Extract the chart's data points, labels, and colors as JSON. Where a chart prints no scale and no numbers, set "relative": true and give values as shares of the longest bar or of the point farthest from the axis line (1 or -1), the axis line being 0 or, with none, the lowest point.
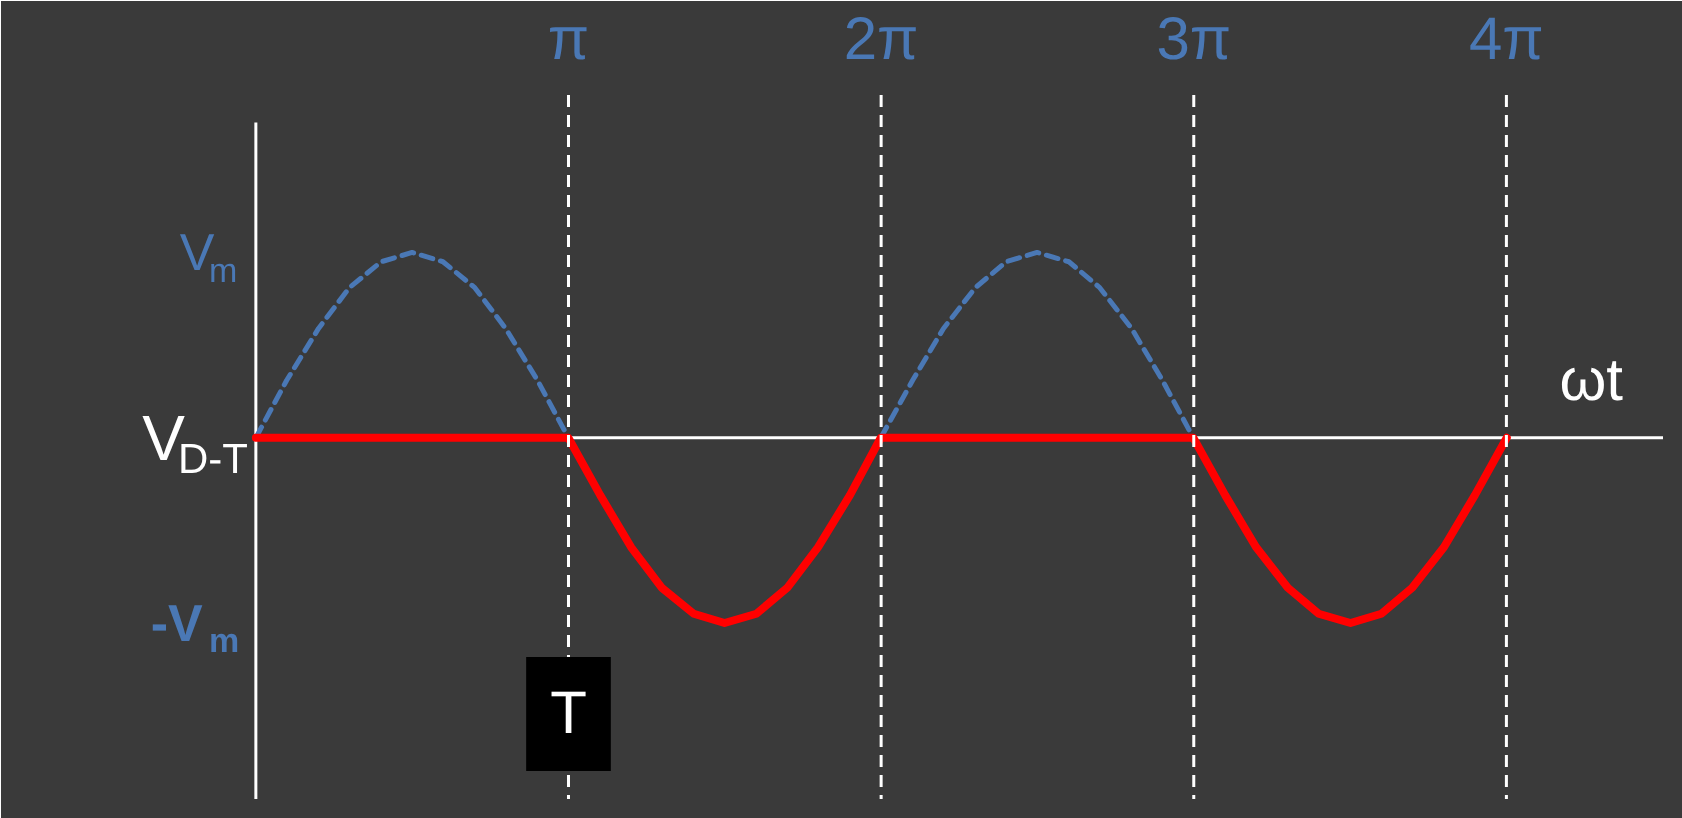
{
  "chart_data": {
    "type": "line",
    "relative": true,
    "xlabel": "ωt",
    "ylabel": "V$_{D-T}$",
    "xlim": [
      -2.36,
      14.14
    ],
    "xticks": [
      {
        "value": 3.1416,
        "label": "π"
      },
      {
        "value": 6.2832,
        "label": "2π"
      },
      {
        "value": 9.4248,
        "label": "3π"
      },
      {
        "value": 12.5664,
        "label": "4π"
      }
    ],
    "series": [
      {
        "color": "#4a78b5",
        "line_style": "dashed",
        "x": [
          0,
          0.31,
          0.63,
          0.94,
          1.26,
          1.57,
          1.88,
          2.2,
          2.51,
          2.83,
          3.14,
          4.71,
          6.28,
          6.6,
          6.91,
          7.23,
          7.54,
          7.85,
          8.17,
          8.48,
          8.8,
          9.11,
          9.42
        ],
        "values": [
          0,
          0.31,
          0.59,
          0.81,
          0.95,
          1,
          0.95,
          0.81,
          0.59,
          0.31,
          0,
          null,
          0,
          0.31,
          0.59,
          0.81,
          0.95,
          1,
          0.95,
          0.81,
          0.59,
          0.31,
          0
        ]
      },
      {
        "color": "#ff0000",
        "line_style": "solid",
        "x": [
          0,
          3.14,
          3.46,
          3.77,
          4.08,
          4.4,
          4.71,
          5.03,
          5.34,
          5.65,
          5.97,
          6.28,
          9.42,
          9.74,
          10.05,
          10.37,
          10.68,
          11.0,
          11.31,
          11.62,
          11.94,
          12.25,
          12.57
        ],
        "values": [
          0,
          0,
          -0.31,
          -0.59,
          -0.81,
          -0.95,
          -1,
          -0.95,
          -0.81,
          -0.59,
          -0.31,
          0,
          0,
          -0.31,
          -0.59,
          -0.81,
          -0.95,
          -1,
          -0.95,
          -0.81,
          -0.59,
          -0.31,
          0
        ]
      }
    ],
    "ref_lines": [
      {
        "axis": "x",
        "value": 3.1416,
        "color": "#ffffff",
        "line_style": "dashed"
      },
      {
        "axis": "x",
        "value": 6.2832,
        "color": "#ffffff",
        "line_style": "dashed"
      },
      {
        "axis": "x",
        "value": 9.4248,
        "color": "#ffffff",
        "line_style": "dashed"
      },
      {
        "axis": "x",
        "value": 12.5664,
        "color": "#ffffff",
        "line_style": "dashed"
      }
    ],
    "annotations": [
      "V$_{m}$",
      "-V$_{m}$",
      "T"
    ],
    "grid": false
  }
}
